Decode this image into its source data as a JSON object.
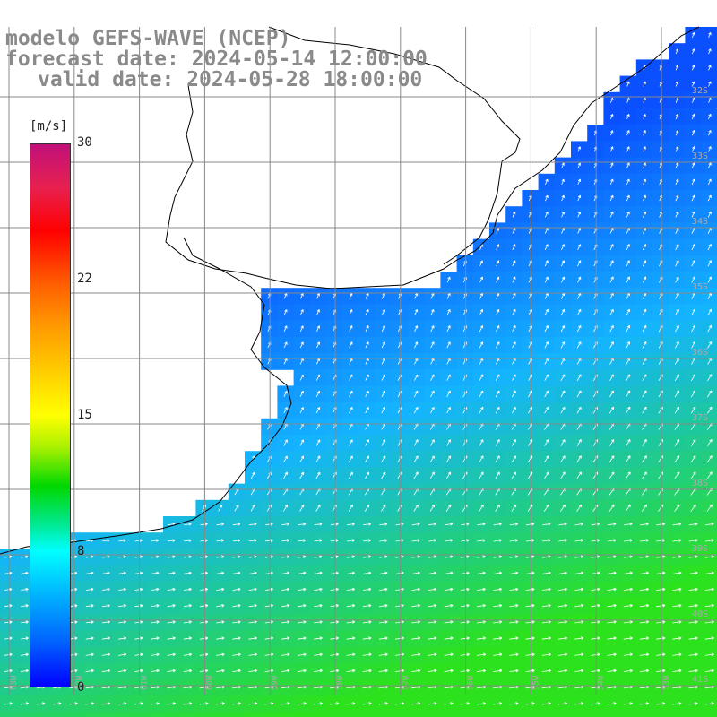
{
  "title": {
    "line1": "modelo GEFS-WAVE (NCEP)",
    "line2": "forecast date: 2024-05-14 12:00:00",
    "line3": "valid date: 2024-05-28 18:00:00"
  },
  "colorbar": {
    "unit": "[m/s]",
    "ticks": [
      "30",
      "22",
      "15",
      "8",
      "0"
    ],
    "tick_values": [
      30,
      22,
      15,
      8,
      0
    ],
    "colors": [
      "#0000ff",
      "#0060ff",
      "#00b4ff",
      "#00ffff",
      "#00e890",
      "#00d800",
      "#a8f000",
      "#ffff00",
      "#ff9d00",
      "#ff6000",
      "#ff0000",
      "#e8204f",
      "#c0107a"
    ]
  },
  "map": {
    "lat_labels": [
      "32S",
      "33S",
      "34S",
      "35S",
      "36S",
      "37S",
      "38S",
      "39S",
      "40S",
      "41S"
    ],
    "lon_labels": [
      "63W",
      "62W",
      "61W",
      "60W",
      "59W",
      "58W",
      "57W",
      "56W",
      "55W",
      "54W",
      "53W"
    ],
    "lat_range": [
      -41.5,
      -30.5
    ],
    "lon_range": [
      -63.5,
      -52.5
    ],
    "grid_lines": "on",
    "land_color": "#ffffff",
    "coast_color": "#000000",
    "vector_color": "#ffffff",
    "field_description_colors": {
      "low": "#0a50ff",
      "mid": "#14b4ff",
      "high": "#2ce21c"
    }
  }
}
